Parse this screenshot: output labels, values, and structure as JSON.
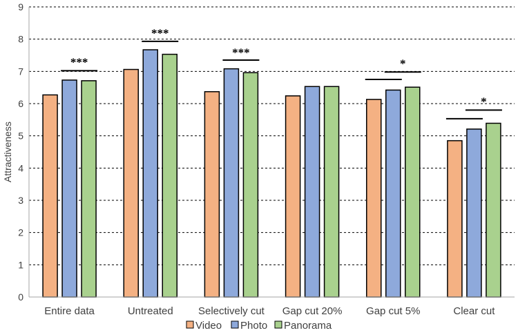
{
  "chart_data": {
    "type": "bar",
    "title": "",
    "xlabel": "",
    "ylabel": "Attractiveness",
    "ylim": [
      0,
      9
    ],
    "yticks": [
      0,
      1,
      2,
      3,
      4,
      5,
      6,
      7,
      8,
      9
    ],
    "grid": "horizontal dashed",
    "legend_position": "bottom-center",
    "categories": [
      "Entire data",
      "Untreated",
      "Selectively cut",
      "Gap cut 20%",
      "Gap cut 5%",
      "Clear cut"
    ],
    "series": [
      {
        "name": "Video",
        "color": "#F4B183",
        "values": [
          6.27,
          7.06,
          6.37,
          6.24,
          6.13,
          4.85
        ]
      },
      {
        "name": "Photo",
        "color": "#8EA9DB",
        "values": [
          6.73,
          7.67,
          7.08,
          6.53,
          6.42,
          5.21
        ]
      },
      {
        "name": "Panorama",
        "color": "#A9D18E",
        "values": [
          6.71,
          7.53,
          6.96,
          6.53,
          6.51,
          5.39
        ]
      }
    ],
    "significance": [
      {
        "category": "Entire data",
        "label": "***",
        "bars": [
          {
            "from": "Photo",
            "to": "Panorama",
            "level": 7.02
          }
        ],
        "label_level": 7.3
      },
      {
        "category": "Untreated",
        "label": "***",
        "bars": [
          {
            "from": "Photo",
            "to": "Panorama",
            "level": 7.93
          }
        ],
        "label_level": 8.2
      },
      {
        "category": "Selectively cut",
        "label": "***",
        "bars": [
          {
            "from": "Photo",
            "to": "Panorama",
            "level": 7.35
          }
        ],
        "label_level": 7.6
      },
      {
        "category": "Gap cut 5%",
        "label": "*",
        "bars": [
          {
            "from": "Video",
            "to": "Photo",
            "level": 6.75
          },
          {
            "from": "Photo",
            "to": "Panorama",
            "level": 6.98
          }
        ],
        "label_level": 7.25
      },
      {
        "category": "Clear cut",
        "label": "*",
        "bars": [
          {
            "from": "Video",
            "to": "Photo",
            "level": 5.53
          },
          {
            "from": "Photo",
            "to": "Panorama",
            "level": 5.8
          }
        ],
        "label_level": 6.08
      }
    ]
  }
}
